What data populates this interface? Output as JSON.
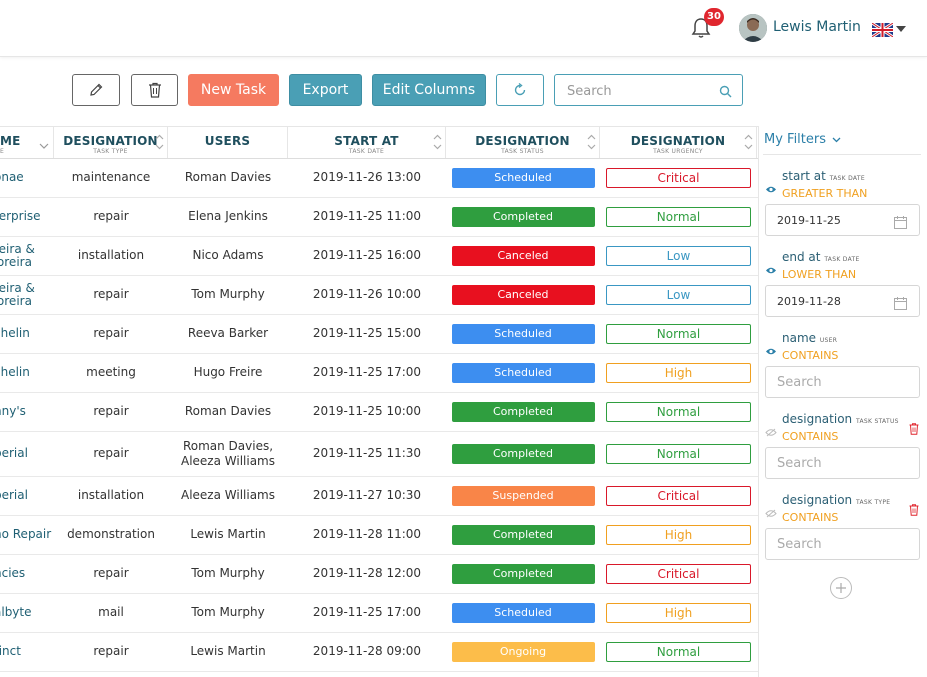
{
  "header": {
    "notification_count": "30",
    "user_name": "Lewis Martin"
  },
  "toolbar": {
    "new_task_label": "New Task",
    "export_label": "Export",
    "edit_columns_label": "Edit Columns",
    "search_placeholder": "Search"
  },
  "table": {
    "columns": [
      {
        "title": "ME",
        "sub": "E"
      },
      {
        "title": "DESIGNATION",
        "sub": "TASK TYPE"
      },
      {
        "title": "USERS",
        "sub": ""
      },
      {
        "title": "START AT",
        "sub": "TASK DATE"
      },
      {
        "title": "DESIGNATION",
        "sub": "TASK STATUS"
      },
      {
        "title": "DESIGNATION",
        "sub": "TASK URGENCY"
      }
    ],
    "rows": [
      {
        "name": "onae",
        "type": "maintenance",
        "users": "Roman Davies",
        "start": "2019-11-26 13:00",
        "status": "Scheduled",
        "urgency": "Critical"
      },
      {
        "name": "terprise",
        "type": "repair",
        "users": "Elena Jenkins",
        "start": "2019-11-25 11:00",
        "status": "Completed",
        "urgency": "Normal"
      },
      {
        "name": "reira &\noreira",
        "type": "installation",
        "users": "Nico Adams",
        "start": "2019-11-25 16:00",
        "status": "Canceled",
        "urgency": "Low"
      },
      {
        "name": "reira &\noreira",
        "type": "repair",
        "users": "Tom Murphy",
        "start": "2019-11-26 10:00",
        "status": "Canceled",
        "urgency": "Low"
      },
      {
        "name": "chelin",
        "type": "repair",
        "users": "Reeva Barker",
        "start": "2019-11-25 15:00",
        "status": "Scheduled",
        "urgency": "Normal"
      },
      {
        "name": "chelin",
        "type": "meeting",
        "users": "Hugo Freire",
        "start": "2019-11-25 17:00",
        "status": "Scheduled",
        "urgency": "High"
      },
      {
        "name": "nny's",
        "type": "repair",
        "users": "Roman Davies",
        "start": "2019-11-25 10:00",
        "status": "Completed",
        "urgency": "Normal"
      },
      {
        "name": "perial",
        "type": "repair",
        "users": "Roman Davies,\nAleeza Williams",
        "start": "2019-11-25 11:30",
        "status": "Completed",
        "urgency": "Normal"
      },
      {
        "name": "perial",
        "type": "installation",
        "users": "Aleeza Williams",
        "start": "2019-11-27 10:30",
        "status": "Suspended",
        "urgency": "Critical"
      },
      {
        "name": "no Repair",
        "type": "demonstration",
        "users": "Lewis Martin",
        "start": "2019-11-28 11:00",
        "status": "Completed",
        "urgency": "High"
      },
      {
        "name": "ncies",
        "type": "repair",
        "users": "Tom Murphy",
        "start": "2019-11-28 12:00",
        "status": "Completed",
        "urgency": "Critical"
      },
      {
        "name": "albyte",
        "type": "mail",
        "users": "Tom Murphy",
        "start": "2019-11-25 17:00",
        "status": "Scheduled",
        "urgency": "High"
      },
      {
        "name": "tinct",
        "type": "repair",
        "users": "Lewis Martin",
        "start": "2019-11-28 09:00",
        "status": "Ongoing",
        "urgency": "Normal"
      }
    ]
  },
  "status_colors": {
    "Scheduled": "#3d8ef0",
    "Completed": "#2f9e3f",
    "Canceled": "#e8101f",
    "Suspended": "#f98548",
    "Ongoing": "#fcbd4a"
  },
  "urgency_colors": {
    "Critical": "#d9182a",
    "Normal": "#2f9e3f",
    "Low": "#3a97c3",
    "High": "#f0a020"
  },
  "filters": {
    "title": "My Filters",
    "items": [
      {
        "field": "start at",
        "field_sub": "TASK DATE",
        "operator": "GREATER THAN",
        "value": "2019-11-25"
      },
      {
        "field": "end at",
        "field_sub": "TASK DATE",
        "operator": "LOWER THAN",
        "value": "2019-11-28"
      },
      {
        "field": "name",
        "field_sub": "USER",
        "operator": "CONTAINS",
        "placeholder": "Search"
      },
      {
        "field": "designation",
        "field_sub": "TASK STATUS",
        "operator": "CONTAINS",
        "placeholder": "Search"
      },
      {
        "field": "designation",
        "field_sub": "TASK TYPE",
        "operator": "CONTAINS",
        "placeholder": "Search"
      }
    ]
  }
}
